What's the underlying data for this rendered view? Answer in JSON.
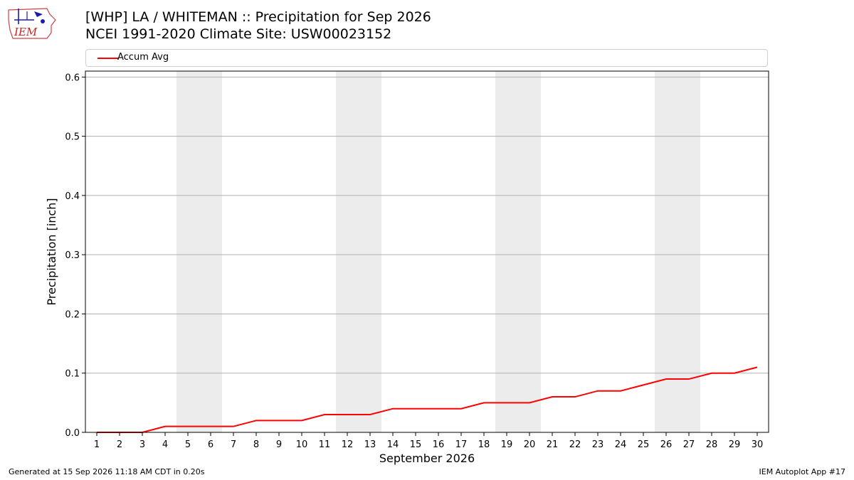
{
  "header": {
    "title_line1": "[WHP] LA / WHITEMAN :: Precipitation for Sep 2026",
    "title_line2": "NCEI 1991-2020 Climate Site: USW00023152"
  },
  "logo": {
    "text": "IEM",
    "icon": "iem-iowa-map-logo"
  },
  "footer": {
    "generated": "Generated at 15 Sep 2026 11:18 AM CDT in 0.20s",
    "app": "IEM Autoplot App #17"
  },
  "colors": {
    "line": "#ff0000",
    "weekend_band": "#ececec",
    "grid": "#b0b0b0"
  },
  "chart_data": {
    "type": "line",
    "xlabel": "September 2026",
    "ylabel": "Precipitation [inch]",
    "ylim": [
      0,
      0.61
    ],
    "yticks": [
      "0.0",
      "0.1",
      "0.2",
      "0.3",
      "0.4",
      "0.5",
      "0.6"
    ],
    "grid": "horizontal",
    "legend_position": "top",
    "x": [
      1,
      2,
      3,
      4,
      5,
      6,
      7,
      8,
      9,
      10,
      11,
      12,
      13,
      14,
      15,
      16,
      17,
      18,
      19,
      20,
      21,
      22,
      23,
      24,
      25,
      26,
      27,
      28,
      29,
      30
    ],
    "series": [
      {
        "name": "Accum Avg",
        "values": [
          0.0,
          0.0,
          0.0,
          0.01,
          0.01,
          0.01,
          0.01,
          0.02,
          0.02,
          0.02,
          0.03,
          0.03,
          0.03,
          0.04,
          0.04,
          0.04,
          0.04,
          0.05,
          0.05,
          0.05,
          0.06,
          0.06,
          0.07,
          0.07,
          0.08,
          0.09,
          0.09,
          0.1,
          0.1,
          0.11
        ]
      }
    ],
    "shaded_days": [
      [
        5,
        6
      ],
      [
        12,
        13
      ],
      [
        19,
        20
      ],
      [
        26,
        27
      ]
    ]
  }
}
